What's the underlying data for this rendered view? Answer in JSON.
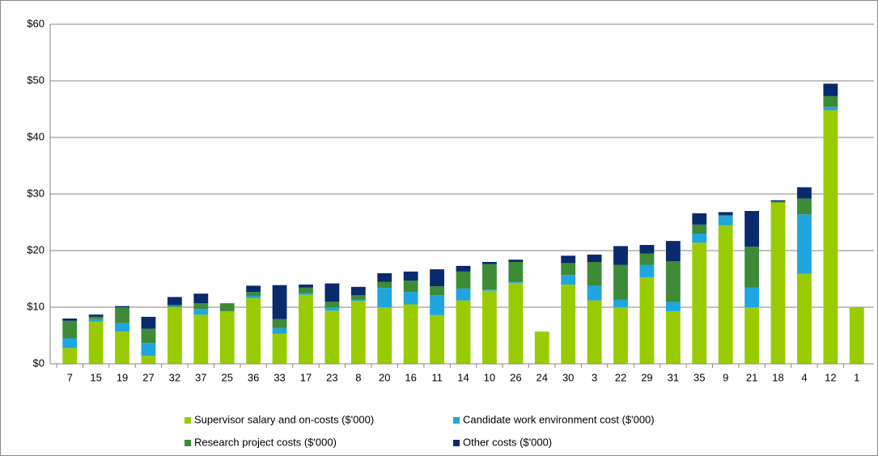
{
  "chart_data": {
    "type": "stacked-bar",
    "categories": [
      "7",
      "15",
      "19",
      "27",
      "32",
      "37",
      "25",
      "36",
      "33",
      "17",
      "23",
      "8",
      "20",
      "16",
      "11",
      "14",
      "10",
      "26",
      "24",
      "30",
      "3",
      "22",
      "29",
      "31",
      "35",
      "9",
      "21",
      "18",
      "4",
      "12",
      "1"
    ],
    "series": [
      {
        "name": "Supervisor salary and on-costs ($'000)",
        "color": "#99cc00",
        "values": [
          2.8,
          7.5,
          5.7,
          1.4,
          10.0,
          8.7,
          9.3,
          11.6,
          5.3,
          12.2,
          9.4,
          11.1,
          10.0,
          10.5,
          8.6,
          11.2,
          12.9,
          14.3,
          5.7,
          14.0,
          11.2,
          10.0,
          15.3,
          9.3,
          21.4,
          24.5,
          10.0,
          28.5,
          15.9,
          44.8,
          10.0
        ]
      },
      {
        "name": "Candidate work environment cost ($'000)",
        "color": "#1fa5e0",
        "values": [
          1.7,
          0.4,
          1.5,
          2.3,
          0.1,
          1.0,
          0,
          0.4,
          1.0,
          0.3,
          0.5,
          0.2,
          3.4,
          2.2,
          3.5,
          2.1,
          0.2,
          0.2,
          0,
          1.7,
          2.6,
          1.3,
          2.2,
          1.6,
          1.6,
          1.6,
          3.5,
          0,
          10.5,
          0.6,
          0
        ]
      },
      {
        "name": "Research project costs ($'000)",
        "color": "#3d8b37",
        "values": [
          3.1,
          0.4,
          2.8,
          2.5,
          0.3,
          1.0,
          1.4,
          0.7,
          1.6,
          1.0,
          1.1,
          0.8,
          1.1,
          2.0,
          1.6,
          3.0,
          4.5,
          3.5,
          0,
          2.1,
          4.2,
          6.2,
          2.0,
          7.2,
          1.6,
          0.2,
          7.2,
          0.2,
          2.8,
          1.9,
          0
        ]
      },
      {
        "name": "Other costs ($'000)",
        "color": "#0a2a6e",
        "values": [
          0.4,
          0.4,
          0.2,
          2.1,
          1.4,
          1.7,
          0,
          1.1,
          6.0,
          0.5,
          3.2,
          1.5,
          1.5,
          1.6,
          3.0,
          1.0,
          0.4,
          0.4,
          0,
          1.3,
          1.3,
          3.3,
          1.5,
          3.6,
          2.0,
          0.5,
          6.3,
          0.2,
          2.0,
          2.2,
          0
        ]
      }
    ],
    "ylim": [
      0,
      60
    ],
    "yticks": [
      {
        "value": 0,
        "label": "$0"
      },
      {
        "value": 10,
        "label": "$10"
      },
      {
        "value": 20,
        "label": "$20"
      },
      {
        "value": 30,
        "label": "$30"
      },
      {
        "value": 40,
        "label": "$40"
      },
      {
        "value": 50,
        "label": "$50"
      },
      {
        "value": 60,
        "label": "$60"
      }
    ],
    "grid": true,
    "legend": "bottom"
  }
}
